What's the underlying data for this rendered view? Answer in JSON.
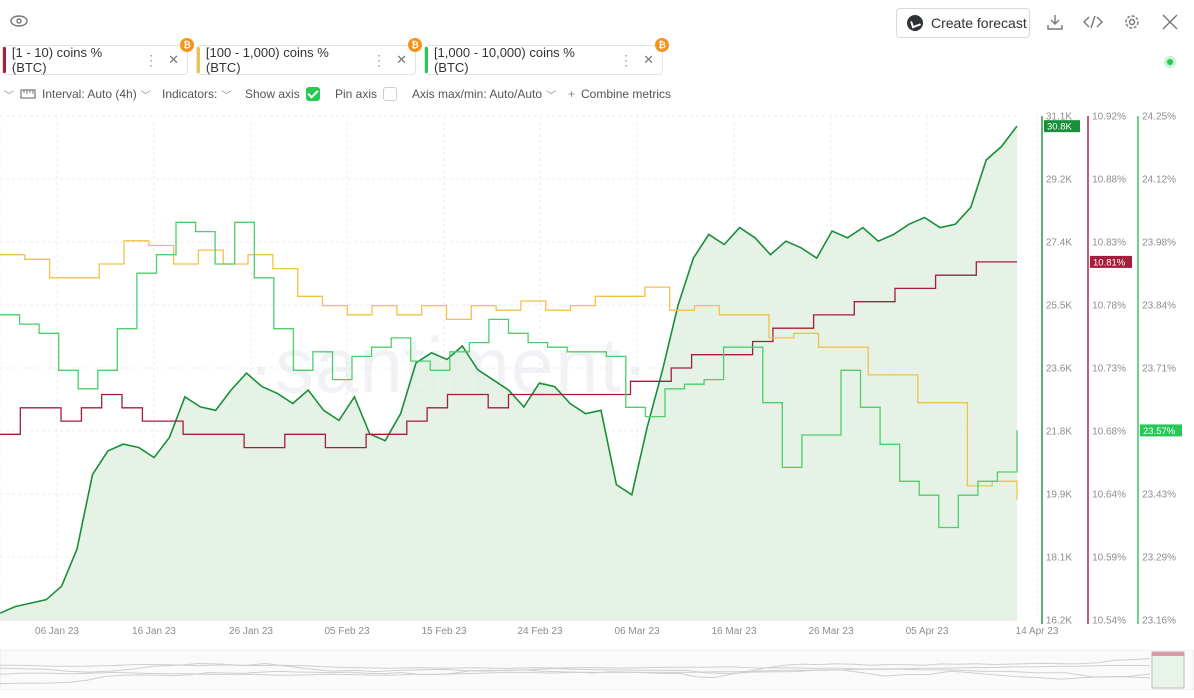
{
  "toolbar": {
    "forecast_label": "Create forecast",
    "icons": [
      "eye-icon",
      "download-icon",
      "code-icon",
      "settings-icon",
      "close-icon"
    ]
  },
  "metrics": [
    {
      "label": "[1 - 10) coins % (BTC)",
      "color": "#a61d3c",
      "badge": "₿"
    },
    {
      "label": "[100 - 1,000) coins % (BTC)",
      "color": "#f0c24c",
      "badge": "₿"
    },
    {
      "label": "[1,000 - 10,000) coins % (BTC)",
      "color": "#26c953",
      "badge": "₿"
    }
  ],
  "controls": {
    "interval": "Interval: Auto (4h)",
    "indicators": "Indicators:",
    "show_axis": "Show axis",
    "pin_axis": "Pin axis",
    "axis_minmax": "Axis max/min: Auto/Auto",
    "combine": "Combine metrics"
  },
  "watermark": "·santiment·",
  "chart_data": {
    "type": "line",
    "x_labels": [
      "06 Jan 23",
      "16 Jan 23",
      "26 Jan 23",
      "05 Feb 23",
      "15 Feb 23",
      "24 Feb 23",
      "06 Mar 23",
      "16 Mar 23",
      "26 Mar 23",
      "05 Apr 23",
      "14 Apr 23"
    ],
    "axes": [
      {
        "id": "price",
        "ticks": [
          "31.1K",
          "29.2K",
          "27.4K",
          "25.5K",
          "23.6K",
          "21.8K",
          "19.9K",
          "18.1K",
          "16.2K"
        ],
        "current": "30.8K",
        "color": "#1a8f3a"
      },
      {
        "id": "small",
        "ticks": [
          "10.92%",
          "10.88%",
          "10.83%",
          "10.78%",
          "10.73%",
          "10.68%",
          "10.64%",
          "10.59%",
          "10.54%"
        ],
        "current": "10.81%",
        "color": "#a61d3c"
      },
      {
        "id": "large",
        "ticks": [
          "24.25%",
          "24.12%",
          "23.98%",
          "23.84%",
          "23.71%",
          "23.57%",
          "23.43%",
          "23.29%",
          "23.16%"
        ],
        "current": "23.57%",
        "color": "#26c953"
      }
    ],
    "series": [
      {
        "name": "",
        "color": "#1a8f3a",
        "fill": "#e2f0e2",
        "axis": "price",
        "values": [
          16.4,
          16.6,
          16.7,
          16.8,
          17.2,
          18.3,
          20.5,
          21.2,
          21.4,
          21.3,
          21.0,
          21.6,
          22.8,
          22.5,
          22.4,
          23.0,
          23.5,
          23.1,
          22.9,
          22.6,
          23.0,
          22.4,
          22.1,
          22.8,
          21.7,
          21.5,
          22.3,
          23.8,
          24.1,
          23.9,
          24.3,
          23.6,
          23.3,
          23.0,
          22.5,
          23.2,
          23.1,
          22.6,
          22.3,
          22.4,
          20.2,
          19.9,
          21.9,
          23.6,
          25.5,
          26.9,
          27.6,
          27.3,
          27.8,
          27.5,
          27.0,
          27.4,
          27.2,
          26.9,
          27.7,
          27.5,
          27.8,
          27.4,
          27.6,
          27.9,
          28.1,
          27.8,
          27.9,
          28.4,
          29.8,
          30.2,
          30.8
        ]
      },
      {
        "name": "",
        "color": "#a61d3c",
        "axis": "small",
        "values": [
          10.68,
          10.7,
          10.7,
          10.69,
          10.7,
          10.71,
          10.7,
          10.69,
          10.69,
          10.68,
          10.68,
          10.68,
          10.67,
          10.67,
          10.68,
          10.68,
          10.67,
          10.67,
          10.68,
          10.68,
          10.69,
          10.7,
          10.71,
          10.71,
          10.7,
          10.71,
          10.71,
          10.71,
          10.71,
          10.71,
          10.71,
          10.72,
          10.72,
          10.73,
          10.74,
          10.74,
          10.74,
          10.75,
          10.76,
          10.76,
          10.77,
          10.77,
          10.78,
          10.78,
          10.79,
          10.79,
          10.8,
          10.8,
          10.81,
          10.81,
          10.81
        ]
      },
      {
        "name": "",
        "color": "#f0c24c",
        "axis": "large",
        "values": [
          23.95,
          23.94,
          23.9,
          23.9,
          23.93,
          23.98,
          23.97,
          23.93,
          23.96,
          23.93,
          23.95,
          23.92,
          23.86,
          23.84,
          23.82,
          23.84,
          23.82,
          23.84,
          23.81,
          23.84,
          23.83,
          23.85,
          23.83,
          23.84,
          23.86,
          23.86,
          23.88,
          23.83,
          23.84,
          23.82,
          23.82,
          23.77,
          23.78,
          23.75,
          23.75,
          23.69,
          23.69,
          23.63,
          23.63,
          23.45,
          23.46,
          23.42
        ]
      },
      {
        "name": "",
        "color": "#4ccf6a",
        "axis": "large",
        "values": [
          23.82,
          23.8,
          23.78,
          23.7,
          23.66,
          23.7,
          23.79,
          23.91,
          23.95,
          24.02,
          24.0,
          23.93,
          24.02,
          23.9,
          23.79,
          23.7,
          23.74,
          23.68,
          23.73,
          23.75,
          23.77,
          23.72,
          23.7,
          23.74,
          23.76,
          23.81,
          23.78,
          23.76,
          23.75,
          23.74,
          23.74,
          23.73,
          23.62,
          23.6,
          23.66,
          23.67,
          23.68,
          23.75,
          23.75,
          23.63,
          23.49,
          23.56,
          23.56,
          23.7,
          23.62,
          23.54,
          23.46,
          23.43,
          23.36,
          23.43,
          23.46,
          23.48,
          23.57
        ]
      }
    ]
  }
}
